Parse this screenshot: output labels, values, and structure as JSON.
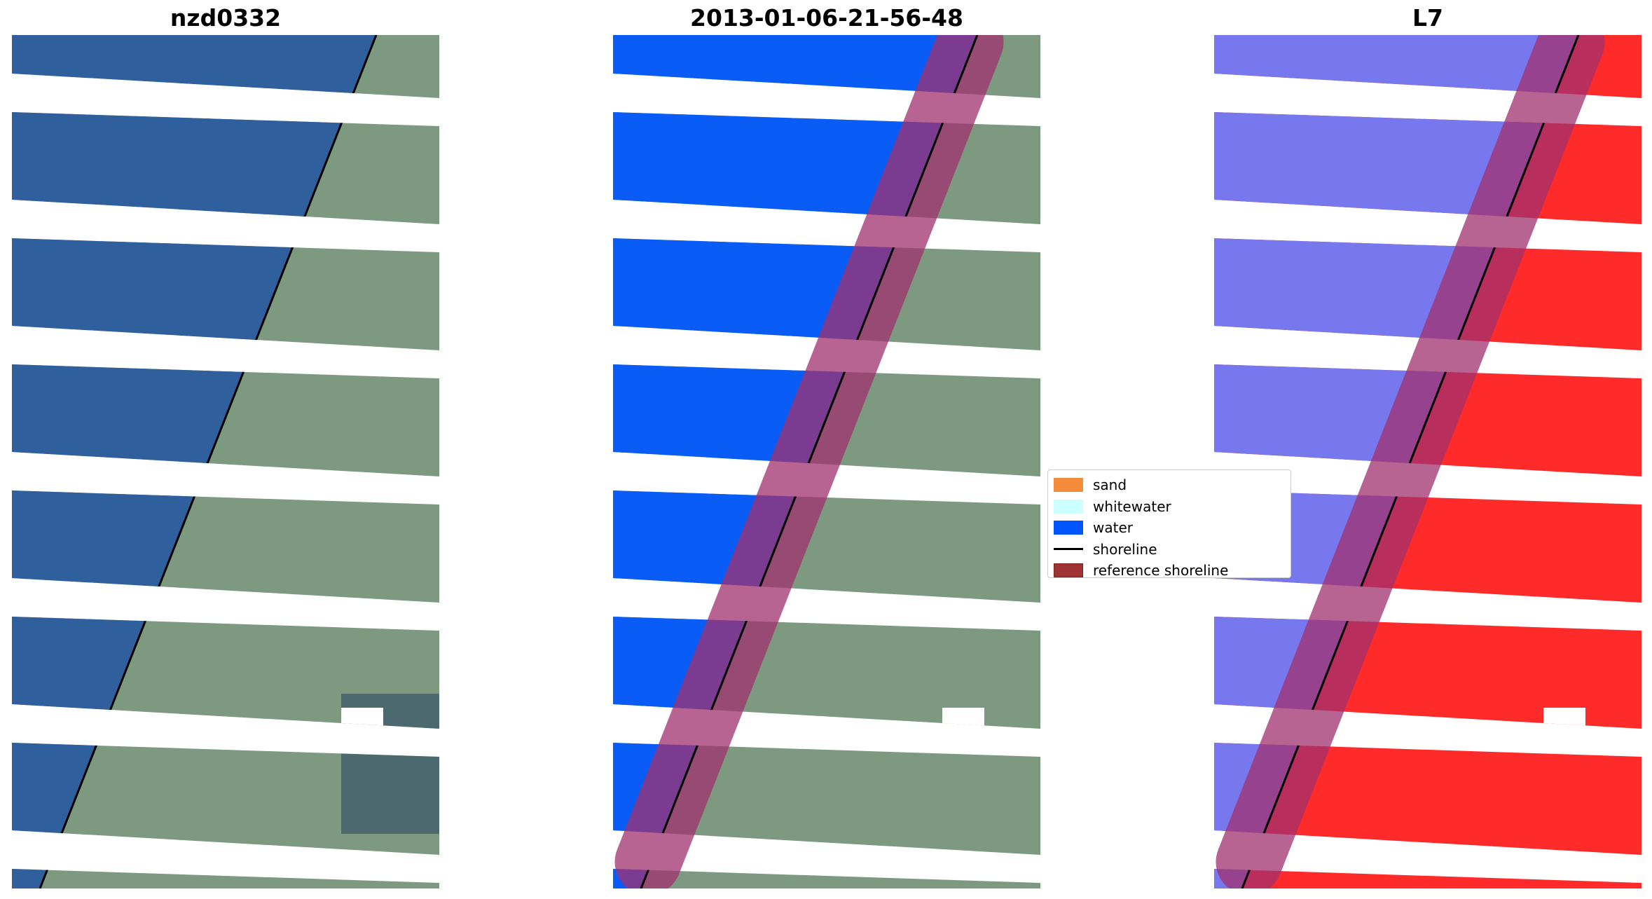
{
  "panels": [
    {
      "title": "nzd0332"
    },
    {
      "title": "2013-01-06-21-56-48"
    },
    {
      "title": "L7"
    }
  ],
  "legend": {
    "items": [
      {
        "label": "sand",
        "color": "#f58c3c"
      },
      {
        "label": "whitewater",
        "color": "#ccffff"
      },
      {
        "label": "water",
        "color": "#0055ff"
      },
      {
        "label": "shoreline",
        "color": "#000000"
      },
      {
        "label": "reference shoreline",
        "color": "#a03333"
      }
    ]
  },
  "colors": {
    "sea_rgb": "#2f5f9c",
    "land_rgb": "#7d9a80",
    "water_class": "#0a5cf7",
    "buffer": "#a0306e",
    "mndwi_water": "#7777ee",
    "mndwi_land": "#ff2a2a"
  }
}
